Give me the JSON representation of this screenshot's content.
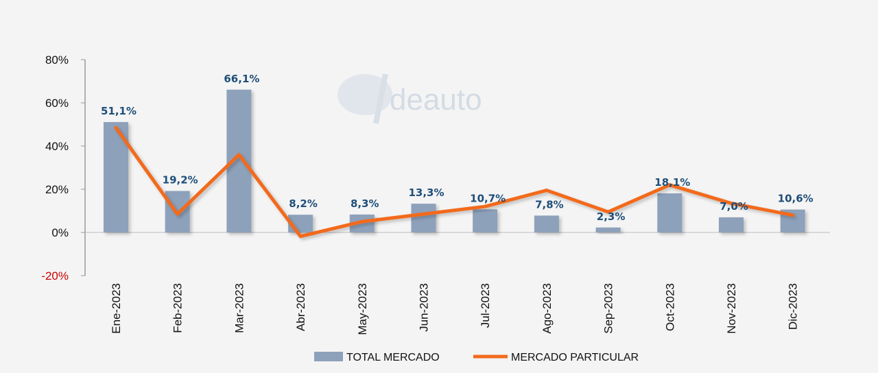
{
  "chart_data": {
    "type": "bar",
    "title": "",
    "xlabel": "",
    "ylabel": "",
    "ylim": [
      -20,
      80
    ],
    "yticks": [
      -20,
      0,
      20,
      40,
      60,
      80
    ],
    "ytick_labels": [
      "-20%",
      "0%",
      "20%",
      "40%",
      "60%",
      "80%"
    ],
    "categories": [
      "Ene-2023",
      "Feb-2023",
      "Mar-2023",
      "Abr-2023",
      "May-2023",
      "Jun-2023",
      "Jul-2023",
      "Ago-2023",
      "Sep-2023",
      "Oct-2023",
      "Nov-2023",
      "Dic-2023"
    ],
    "series": [
      {
        "name": "TOTAL MERCADO",
        "type": "bar",
        "values": [
          51.1,
          19.2,
          66.1,
          8.2,
          8.3,
          13.3,
          10.7,
          7.8,
          2.3,
          18.1,
          7.0,
          10.6
        ],
        "labels": [
          "51,1%",
          "19,2%",
          "66,1%",
          "8,2%",
          "8,3%",
          "13,3%",
          "10,7%",
          "7,8%",
          "2,3%",
          "18,1%",
          "7,0%",
          "10,6%"
        ]
      },
      {
        "name": "MERCADO PARTICULAR",
        "type": "line",
        "values": [
          48.5,
          8.5,
          36.0,
          -1.8,
          5.0,
          8.5,
          12.0,
          19.5,
          9.5,
          22.0,
          13.5,
          8.0
        ]
      }
    ],
    "legend": [
      "TOTAL MERCADO",
      "MERCADO PARTICULAR"
    ],
    "legend_position": "bottom-center",
    "watermark": "deauto",
    "grid": false
  },
  "colors": {
    "bar": "#8ea1bb",
    "line": "#f26b1d",
    "data_label": "#1f4e79",
    "negative_tick": "#cc0000",
    "axis": "#999999"
  }
}
